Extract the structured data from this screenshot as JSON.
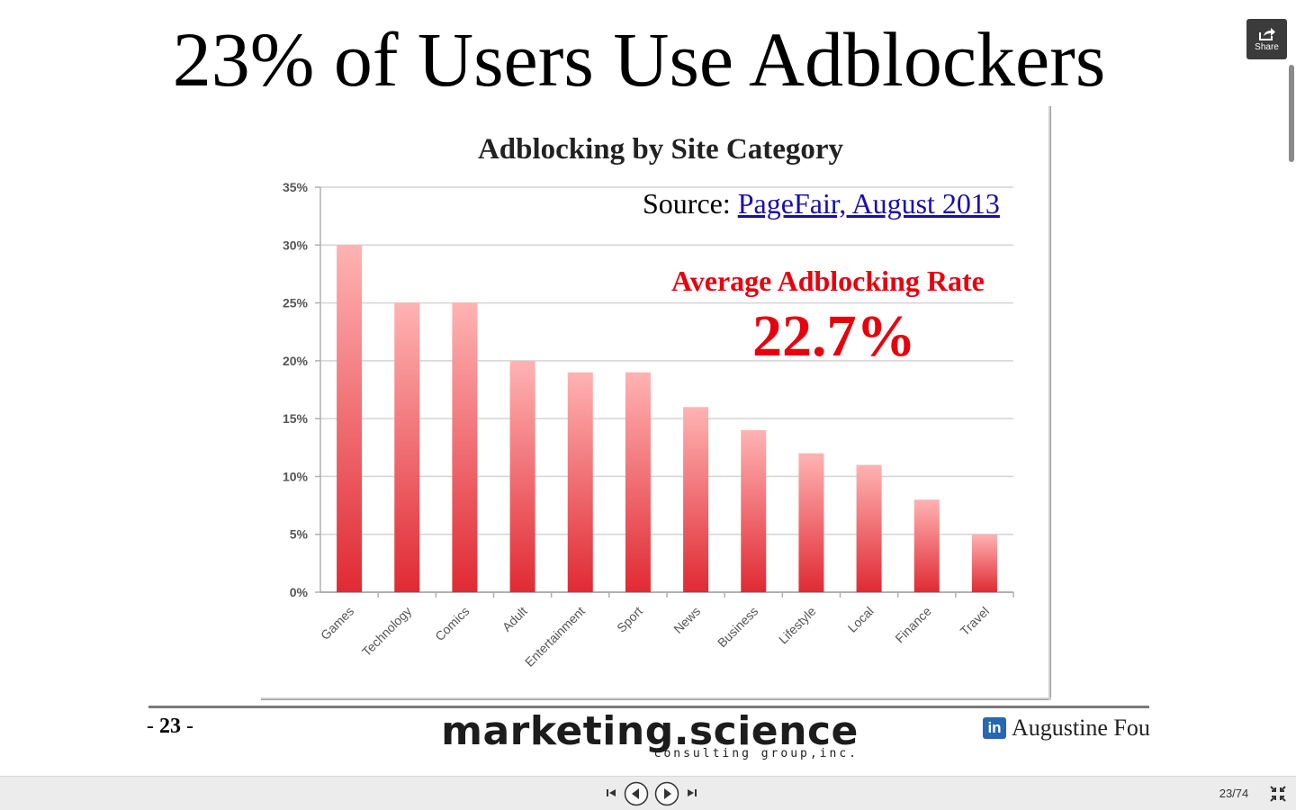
{
  "slide": {
    "title": "23% of Users Use Adblockers",
    "source_prefix": "Source: ",
    "source_link": "PageFair, August 2013",
    "average_label": "Average Adblocking Rate",
    "average_value": "22.7%",
    "slide_number_left": "- ",
    "slide_number": "23",
    "slide_number_right": " -",
    "brand_name": "marketing.science",
    "brand_tagline": "consulting group,inc.",
    "author": "Augustine Fou",
    "linkedin_icon_text": "in"
  },
  "chart_data": {
    "type": "bar",
    "title": "Adblocking by Site Category",
    "categories": [
      "Games",
      "Technology",
      "Comics",
      "Adult",
      "Entertainment",
      "Sport",
      "News",
      "Business",
      "Lifestyle",
      "Local",
      "Finance",
      "Travel"
    ],
    "values": [
      30,
      25,
      25,
      20,
      19,
      19,
      16,
      14,
      12,
      11,
      8,
      5
    ],
    "value_unit": "%",
    "ylim": [
      0,
      35
    ],
    "yticks": [
      "0%",
      "5%",
      "10%",
      "15%",
      "20%",
      "25%",
      "30%",
      "35%"
    ],
    "grid": true,
    "bar_color_top": "#ffb3b3",
    "bar_color_bottom": "#e02a33",
    "xlabel": "",
    "ylabel": ""
  },
  "share": {
    "label": "Share",
    "icon": "share-icon"
  },
  "controls": {
    "first_icon": "skip-to-start-icon",
    "prev_icon": "previous-icon",
    "next_icon": "play-next-icon",
    "last_icon": "skip-to-end-icon",
    "fullscreen_icon": "exit-fullscreen-icon",
    "page_counter": "23/74"
  }
}
